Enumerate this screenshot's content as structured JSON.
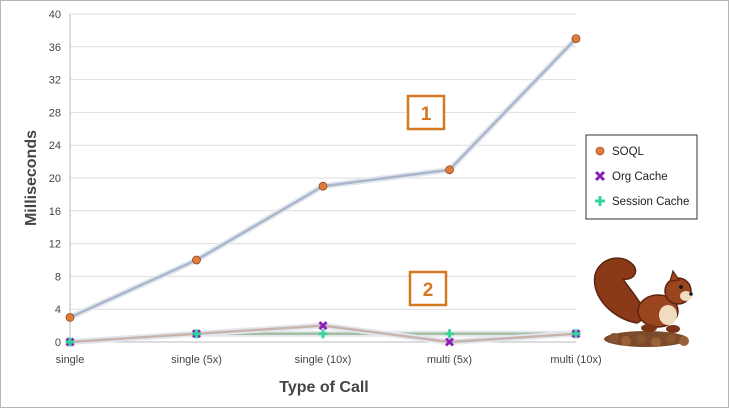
{
  "chart_data": {
    "type": "line",
    "title": "",
    "xlabel": "Type of Call",
    "ylabel": "Milliseconds",
    "categories": [
      "single",
      "single (5x)",
      "single (10x)",
      "multi (5x)",
      "multi (10x)"
    ],
    "ylim": [
      0,
      40
    ],
    "yticks": [
      0,
      4,
      8,
      12,
      16,
      20,
      24,
      28,
      32,
      36,
      40
    ],
    "grid": true,
    "legend_position": "right",
    "series": [
      {
        "name": "SOQL",
        "values": [
          3,
          10,
          19,
          21,
          37
        ],
        "color": "#e07b39",
        "line_color": "#a9b7cc",
        "marker": "circle"
      },
      {
        "name": "Org Cache",
        "values": [
          0,
          1,
          2,
          0,
          1
        ],
        "color": "#8b22b8",
        "line_color": "#c9b3ad",
        "marker": "x"
      },
      {
        "name": "Session Cache",
        "values": [
          0,
          1,
          1,
          1,
          1
        ],
        "color": "#35d49a",
        "line_color": "#a3bea1",
        "marker": "plus"
      }
    ],
    "annotations": [
      {
        "label": "1",
        "color": "#d4791f"
      },
      {
        "label": "2",
        "color": "#d4791f"
      }
    ],
    "illustration": "squirrel-mascot"
  }
}
